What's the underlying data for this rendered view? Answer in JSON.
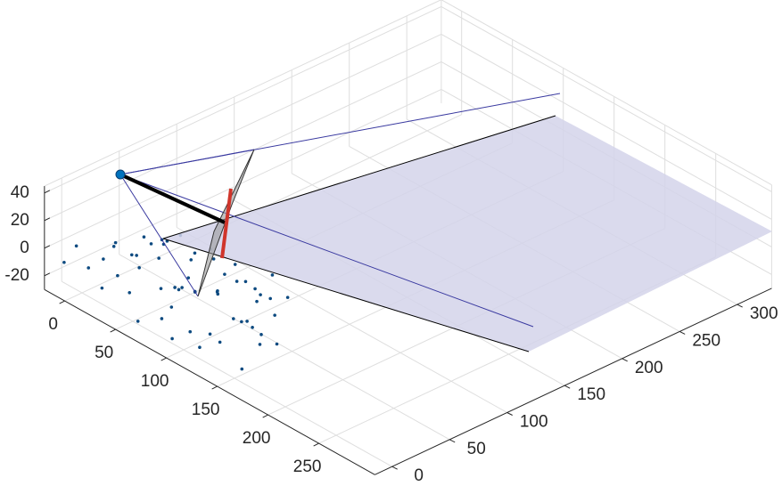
{
  "chart_data": {
    "type": "scatter3d",
    "xlim": [
      -20,
      305
    ],
    "ylim": [
      -15,
      330
    ],
    "zlim": [
      -30,
      45
    ],
    "xticks": [
      0,
      50,
      100,
      150,
      200,
      250
    ],
    "yticks": [
      0,
      50,
      100,
      150,
      200,
      250,
      300
    ],
    "zticks": [
      -20,
      0,
      20,
      40
    ],
    "grid": true,
    "color": "#0d4a80",
    "x": [
      5,
      12,
      20,
      28,
      35,
      8,
      15,
      40,
      48,
      55,
      60,
      22,
      30,
      65,
      72,
      80,
      45,
      52,
      88,
      95,
      100,
      70,
      78,
      105,
      112,
      120,
      90,
      98,
      130,
      138,
      145,
      110,
      118,
      150,
      158,
      125,
      132,
      140,
      160,
      165,
      18,
      25,
      38,
      58,
      62,
      75,
      85,
      92,
      102,
      115,
      128,
      135,
      148,
      155,
      10,
      33,
      68,
      82,
      108,
      142
    ],
    "y": [
      -20,
      -5,
      10,
      25,
      40,
      -12,
      30,
      -18,
      5,
      20,
      45,
      50,
      -8,
      35,
      -15,
      10,
      55,
      28,
      0,
      40,
      -10,
      50,
      18,
      25,
      -5,
      12,
      38,
      48,
      5,
      30,
      20,
      45,
      -2,
      35,
      15,
      55,
      22,
      40,
      28,
      10,
      15,
      38,
      52,
      -10,
      12,
      32,
      58,
      -12,
      8,
      30,
      42,
      -8,
      48,
      2,
      45,
      0,
      24,
      42,
      55,
      18
    ],
    "z": [
      2,
      -5,
      8,
      -10,
      4,
      12,
      -8,
      -3,
      15,
      -12,
      6,
      -2,
      10,
      -6,
      -15,
      3,
      -9,
      18,
      -4,
      7,
      -18,
      11,
      -1,
      5,
      -10,
      14,
      -7,
      0,
      -14,
      9,
      -3,
      6,
      -20,
      2,
      -8,
      13,
      -5,
      8,
      -12,
      4,
      -16,
      1,
      7,
      -2,
      16,
      -11,
      3,
      -6,
      10,
      -13,
      5,
      -1,
      9,
      -22,
      -3,
      20,
      -9,
      12,
      -4,
      1
    ]
  }
}
